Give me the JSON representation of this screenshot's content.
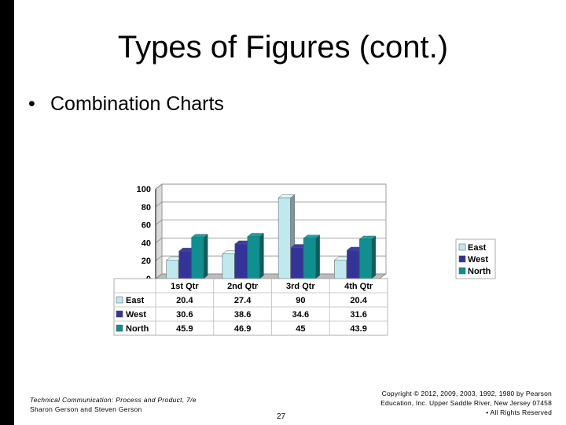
{
  "slide": {
    "title": "Types of Figures (cont.)",
    "bullet": "Combination Charts",
    "footer_left_line1": "Technical Communication: Process and Product, 7/e",
    "footer_left_line2": "Sharon Gerson and Steven Gerson",
    "page_number": "27",
    "footer_right": "Copyright © 2012, 2009, 2003, 1992, 1980 by Pearson Education, Inc. Upper Saddle River, New Jersey 07458 • All Rights Reserved"
  },
  "chart_data": {
    "type": "bar",
    "categories": [
      "1st Qtr",
      "2nd Qtr",
      "3rd Qtr",
      "4th Qtr"
    ],
    "series": [
      {
        "name": "East",
        "values": [
          20.4,
          27.4,
          90,
          20.4
        ],
        "color": "#bfe9ef",
        "label": "20.4|27.4|90|20.4"
      },
      {
        "name": "West",
        "values": [
          30.6,
          38.6,
          34.6,
          31.6
        ],
        "color": "#33339a"
      },
      {
        "name": "North",
        "values": [
          45.9,
          46.9,
          45,
          43.9
        ],
        "color": "#0f8f8f"
      }
    ],
    "value_labels": [
      [
        "20.4",
        "27.4",
        "90",
        "20.4"
      ],
      [
        "30.6",
        "38.6",
        "34.6",
        "31.6"
      ],
      [
        "45.9",
        "46.9",
        "45",
        "43.9"
      ]
    ],
    "yticks": [
      "0",
      "20",
      "40",
      "60",
      "80",
      "100"
    ],
    "ylim": [
      0,
      100
    ],
    "grid": true,
    "legend": "right",
    "data_table": true,
    "bar_style": "3d"
  }
}
